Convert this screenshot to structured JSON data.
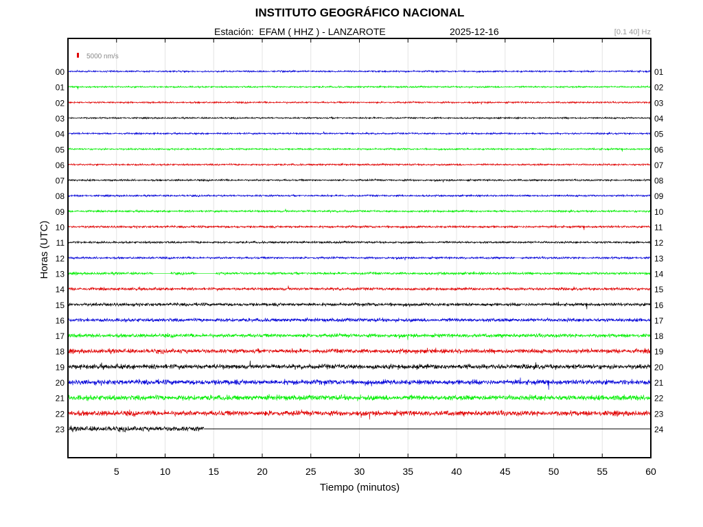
{
  "header": {
    "title": "INSTITUTO GEOGRÁFICO NACIONAL",
    "station": "Estación:  EFAM ( HHZ ) - LANZAROTE",
    "date": "2025-12-16",
    "filter": "[0.1 40] Hz"
  },
  "chart_data": {
    "type": "line",
    "title": "INSTITUTO GEOGRÁFICO NACIONAL",
    "xlabel": "Tiempo (minutos)",
    "ylabel": "Horas (UTC)",
    "xlim": [
      0,
      60
    ],
    "x_ticks": [
      5,
      10,
      15,
      20,
      25,
      30,
      35,
      40,
      45,
      50,
      55,
      60
    ],
    "scale_label": "5000 nm/s",
    "scale_color": "#e00000",
    "grid": true,
    "color_cycle": [
      "#0000d8",
      "#00ee00",
      "#e00000",
      "#000000"
    ],
    "left_ticks": [
      "00",
      "01",
      "02",
      "03",
      "04",
      "05",
      "06",
      "07",
      "08",
      "09",
      "10",
      "11",
      "12",
      "13",
      "14",
      "15",
      "16",
      "17",
      "18",
      "19",
      "20",
      "21",
      "22",
      "23"
    ],
    "right_ticks": [
      "01",
      "02",
      "03",
      "04",
      "05",
      "06",
      "07",
      "08",
      "09",
      "10",
      "11",
      "12",
      "13",
      "14",
      "15",
      "16",
      "17",
      "18",
      "19",
      "20",
      "21",
      "22",
      "23",
      "24"
    ],
    "series_amplitude_nm_s": [
      1200,
      1200,
      1200,
      1100,
      1200,
      1200,
      1300,
      1300,
      1300,
      1400,
      1600,
      1500,
      1500,
      1800,
      2000,
      2300,
      2600,
      2700,
      3200,
      3500,
      3700,
      3800,
      3800,
      3600
    ],
    "data_end_minute": 14,
    "gaps": [
      {
        "hour": 13,
        "from_min": 8.8,
        "to_min": 10.5
      },
      {
        "hour": 13,
        "from_min": 13.3,
        "to_min": 15.2
      },
      {
        "hour": 12,
        "from_min": 46.0,
        "to_min": 46.6
      }
    ]
  }
}
